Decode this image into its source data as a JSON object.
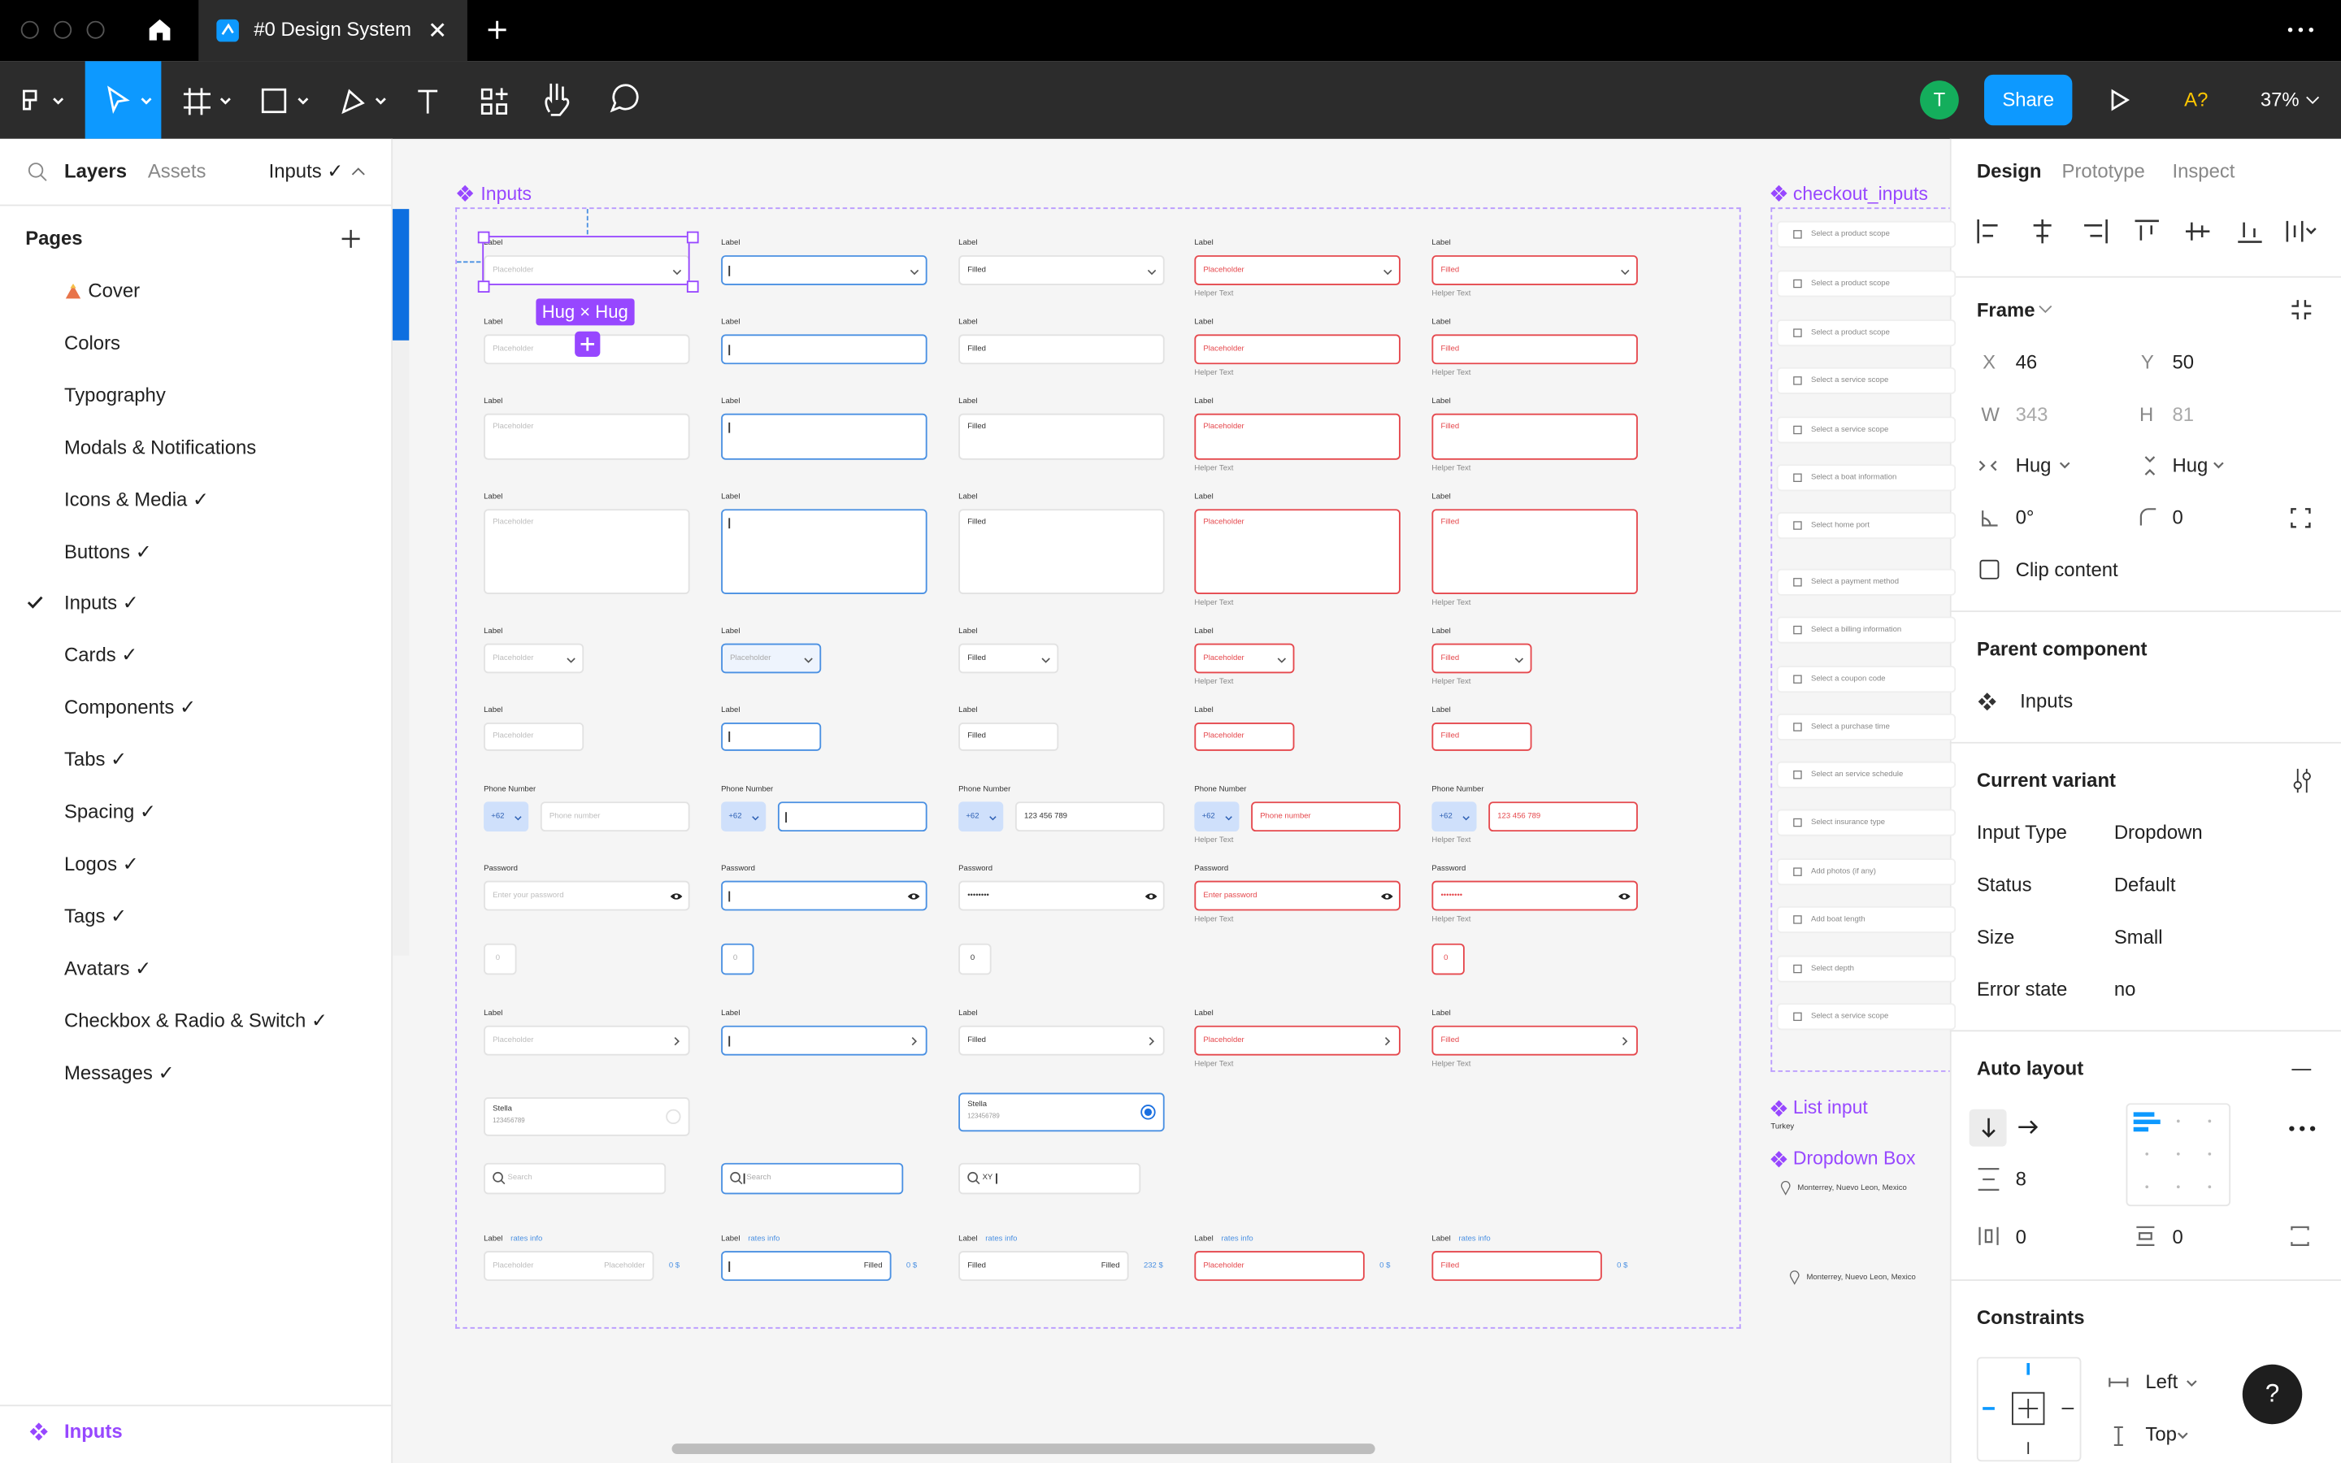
{
  "tab": {
    "title": "#0 Design System"
  },
  "toolbar": {
    "avatar": "T",
    "share": "Share",
    "font_warning": "A?",
    "zoom": "37%"
  },
  "left_panel": {
    "tabs": [
      "Layers",
      "Assets"
    ],
    "page_selector": "Inputs ✓",
    "pages_heading": "Pages",
    "pages": [
      "Cover",
      "Colors",
      "Typography",
      "Modals & Notifications",
      "Icons & Media ✓",
      "Buttons ✓",
      "Inputs ✓",
      "Cards ✓",
      "Components ✓",
      "Tabs ✓",
      "Spacing ✓",
      "Logos ✓",
      "Tags ✓",
      "Avatars ✓",
      "Checkbox & Radio & Switch ✓",
      "Messages ✓"
    ],
    "current_page_index": 6,
    "selected_layer": "Inputs"
  },
  "canvas": {
    "frame_title": "Inputs",
    "selection_badge": "Hug × Hug",
    "helper_text": "Helper Text",
    "rows": [
      {
        "label": "Label",
        "values": [
          "Placeholder",
          null,
          "Filled",
          "Placeholder",
          "Filled"
        ]
      },
      {
        "label": "Label",
        "values": [
          "Placeholder",
          null,
          "Filled",
          "Placeholder",
          "Filled"
        ]
      },
      {
        "label": "Label",
        "values": [
          "Placeholder",
          null,
          "Filled",
          "Placeholder",
          "Filled"
        ]
      },
      {
        "label": "Label",
        "values": [
          "Placeholder",
          null,
          "Filled",
          "Placeholder",
          "Filled"
        ]
      },
      {
        "label": "Label",
        "values": [
          "Placeholder",
          "Placeholder",
          "Filled",
          "Placeholder",
          "Filled"
        ]
      },
      {
        "label": "Label",
        "values": [
          "Placeholder",
          null,
          "Filled",
          "Placeholder",
          "Filled"
        ]
      },
      {
        "label": "Phone Number",
        "prefix": "+62",
        "values": [
          "Phone number",
          null,
          "123 456 789",
          "Phone number",
          "123 456 789"
        ]
      },
      {
        "label": "Password",
        "values": [
          "Enter your password",
          null,
          "••••••••",
          "Enter password",
          "••••••••"
        ]
      },
      {
        "values": [
          "0",
          "0",
          "0",
          null,
          "0"
        ]
      },
      {
        "label": "Label",
        "values": [
          "Placeholder",
          null,
          "Filled",
          "Placeholder",
          "Filled"
        ]
      },
      {
        "values": [
          {
            "title": "Stella",
            "subtitle": "123456789"
          },
          null,
          {
            "title": "Stella",
            "subtitle": "123456789"
          }
        ]
      },
      {
        "values": [
          "Search",
          "Search",
          "XY"
        ]
      },
      {
        "label": "Label",
        "link": "rates info",
        "values": [
          "Placeholder",
          null,
          "Filled",
          "Placeholder",
          "Filled"
        ],
        "units": [
          "Placeholder",
          "Filled",
          "Filled"
        ],
        "suffix": [
          "0 $",
          "0 $",
          "232 $",
          "0 $",
          "0 $"
        ]
      }
    ],
    "checkout": {
      "title": "checkout_inputs",
      "items": [
        "Select a product scope",
        "Select a product scope",
        "Select a product scope",
        "Select a service scope",
        "Select a service scope",
        "Select a boat information",
        "Select home port",
        "Select a payment method",
        "Select a billing information",
        "Select a coupon code",
        "Select a purchase time",
        "Select an service schedule",
        "Select insurance type",
        "Add photos (if any)",
        "Add boat length",
        "Select depth",
        "Select a service scope"
      ]
    },
    "list_input": {
      "title": "List input",
      "item": "Turkey"
    },
    "dropdown_box": {
      "title": "Dropdown Box",
      "items": [
        "Monterrey, Nuevo Leon, Mexico",
        "Monterrey, Nuevo Leon, Mexico"
      ]
    }
  },
  "right_panel": {
    "tabs": [
      "Design",
      "Prototype",
      "Inspect"
    ],
    "frame": {
      "heading": "Frame",
      "x": {
        "label": "X",
        "value": 46
      },
      "y": {
        "label": "Y",
        "value": 50
      },
      "w": {
        "label": "W",
        "value": 343
      },
      "h": {
        "label": "H",
        "value": 81
      },
      "width_mode": "Hug",
      "height_mode": "Hug",
      "rotation": "0°",
      "radius": 0,
      "clip": "Clip content"
    },
    "parent_component": {
      "heading": "Parent component",
      "name": "Inputs"
    },
    "current_variant": {
      "heading": "Current variant",
      "properties": [
        {
          "name": "Input Type",
          "value": "Dropdown"
        },
        {
          "name": "Status",
          "value": "Default"
        },
        {
          "name": "Size",
          "value": "Small"
        },
        {
          "name": "Error state",
          "value": "no"
        }
      ]
    },
    "auto_layout": {
      "heading": "Auto layout",
      "gap": 8,
      "padding_horizontal": 0,
      "padding_vertical": 0
    },
    "constraints": {
      "heading": "Constraints",
      "horizontal": "Left",
      "vertical": "Top"
    },
    "help": "?"
  }
}
